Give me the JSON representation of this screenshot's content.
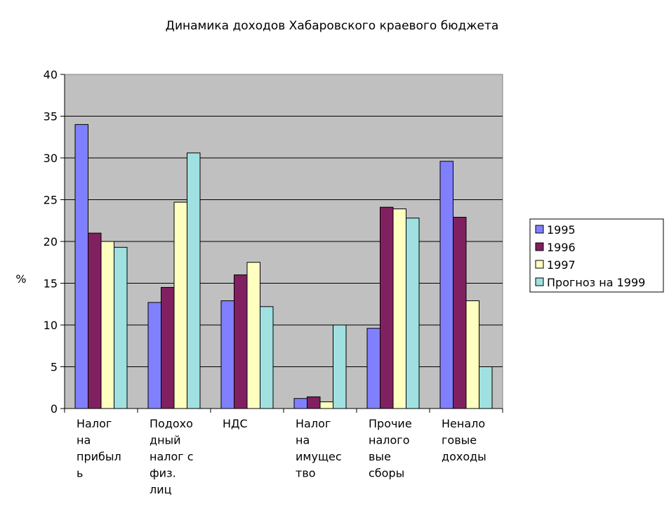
{
  "chart_data": {
    "type": "bar",
    "title": "Динамика доходов Хабаровского краевого бюджета",
    "ylabel": "%",
    "xlabel": "",
    "ylim": [
      0,
      40
    ],
    "yticks": [
      0,
      5,
      10,
      15,
      20,
      25,
      30,
      35,
      40
    ],
    "grid": true,
    "legend_position": "right",
    "categories": [
      "Налог на прибыль",
      "Подоходный налог с физ. лиц",
      "НДС",
      "Налог на имущество",
      "Прочие налоговые сборы",
      "Неналоговые доходы"
    ],
    "category_label_lines": [
      [
        "Налог",
        "на",
        "прибыл",
        "ь"
      ],
      [
        "Подохо",
        "дный",
        "налог с",
        "физ.",
        "лиц"
      ],
      [
        "НДС"
      ],
      [
        "Налог",
        "на",
        "имущес",
        "тво"
      ],
      [
        "Прочие",
        "налого",
        "вые",
        "сборы"
      ],
      [
        "Ненало",
        "говые",
        "доходы"
      ]
    ],
    "series": [
      {
        "name": "1995",
        "color": "#8080ff",
        "values": [
          34,
          12.7,
          12.9,
          1.2,
          9.6,
          29.6
        ]
      },
      {
        "name": "1996",
        "color": "#802060",
        "values": [
          21,
          14.5,
          16,
          1.4,
          24.1,
          22.9
        ]
      },
      {
        "name": "1997",
        "color": "#ffffc0",
        "values": [
          20,
          24.7,
          17.5,
          0.8,
          23.9,
          12.9
        ]
      },
      {
        "name": "Прогноз на 1999",
        "color": "#a0e0e0",
        "values": [
          19.3,
          30.6,
          12.2,
          10,
          22.8,
          5
        ]
      }
    ],
    "plot_background": "#c0c0c0"
  }
}
